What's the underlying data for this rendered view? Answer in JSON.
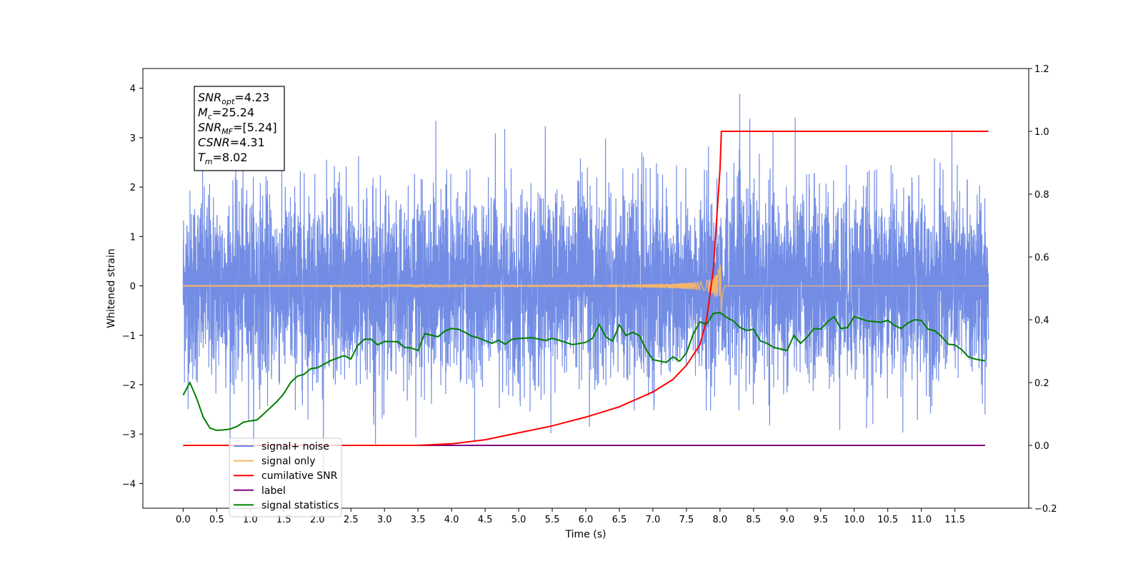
{
  "chart_data": {
    "type": "line",
    "xlabel": "Time (s)",
    "ylabel": "Whitened strain",
    "xlim": [
      -0.6,
      12.6
    ],
    "ylim": [
      -4.5,
      4.4
    ],
    "ylim_right": [
      -0.2,
      1.2
    ],
    "x_ticks": [
      "0.0",
      "0.5",
      "1.0",
      "1.5",
      "2.0",
      "2.5",
      "3.0",
      "3.5",
      "4.0",
      "4.5",
      "5.0",
      "5.5",
      "6.0",
      "6.5",
      "7.0",
      "7.5",
      "8.0",
      "8.5",
      "9.0",
      "9.5",
      "10.0",
      "10.5",
      "11.0",
      "11.5"
    ],
    "y_ticks": [
      "4",
      "3",
      "2",
      "1",
      "0",
      "−1",
      "−2",
      "−3",
      "−4"
    ],
    "y_ticks_right": [
      "1.2",
      "1.0",
      "0.8",
      "0.6",
      "0.4",
      "0.2",
      "0.0",
      "−0.2"
    ],
    "grid": false,
    "legend_placement": "lower-left",
    "annotation": [
      {
        "name": "SNR",
        "sub": "opt",
        "value": "=4.23"
      },
      {
        "name": "M",
        "sub": "c",
        "value": "=25.24"
      },
      {
        "name": "SNR",
        "sub": "MF",
        "value": "=[5.24]"
      },
      {
        "name": "CSNR",
        "sub": "",
        "value": "=4.31"
      },
      {
        "name": "T",
        "sub": "m",
        "value": "=8.02"
      }
    ],
    "series": [
      {
        "name": "signal+ noise",
        "color": "#6b87e4",
        "axis": "left",
        "description_points": {
          "noise_std": 1.0,
          "x_start": 0.0,
          "x_end": 12.0
        }
      },
      {
        "name": "signal only",
        "color": "#f5b56a",
        "axis": "left",
        "chirp": {
          "t_merge": 8.02,
          "peak_amplitude": 0.9
        }
      },
      {
        "name": "cumilative SNR",
        "color": "#ff0000",
        "axis": "right",
        "x": [
          0.0,
          3.5,
          4.0,
          4.5,
          5.0,
          5.5,
          6.0,
          6.5,
          7.0,
          7.3,
          7.5,
          7.7,
          7.8,
          7.9,
          7.95,
          8.0,
          8.02,
          12.0
        ],
        "values": [
          0.0,
          0.0,
          0.005,
          0.018,
          0.04,
          0.062,
          0.09,
          0.123,
          0.17,
          0.21,
          0.255,
          0.32,
          0.4,
          0.56,
          0.72,
          0.88,
          1.0,
          1.0
        ]
      },
      {
        "name": "label",
        "color": "#800080",
        "axis": "right",
        "x": [
          0.0,
          11.95
        ],
        "values": [
          0.0,
          0.0
        ]
      },
      {
        "name": "signal statistics",
        "color": "#007f00",
        "axis": "right",
        "x": [
          0.0,
          0.1,
          0.2,
          0.3,
          0.4,
          0.5,
          0.6,
          0.7,
          0.8,
          0.9,
          1.0,
          1.1,
          1.2,
          1.3,
          1.4,
          1.5,
          1.6,
          1.7,
          1.8,
          1.9,
          2.0,
          2.2,
          2.4,
          2.5,
          2.6,
          2.7,
          2.8,
          2.9,
          3.0,
          3.2,
          3.3,
          3.4,
          3.5,
          3.6,
          3.8,
          3.9,
          4.0,
          4.1,
          4.2,
          4.3,
          4.4,
          4.6,
          4.7,
          4.8,
          4.9,
          5.0,
          5.2,
          5.4,
          5.5,
          5.6,
          5.8,
          6.0,
          6.1,
          6.2,
          6.3,
          6.4,
          6.5,
          6.6,
          6.7,
          6.8,
          6.9,
          7.0,
          7.2,
          7.3,
          7.4,
          7.5,
          7.6,
          7.7,
          7.8,
          7.9,
          8.0,
          8.1,
          8.2,
          8.3,
          8.4,
          8.5,
          8.6,
          8.7,
          8.8,
          8.9,
          9.0,
          9.1,
          9.2,
          9.3,
          9.4,
          9.5,
          9.6,
          9.7,
          9.8,
          9.9,
          10.0,
          10.2,
          10.4,
          10.5,
          10.6,
          10.7,
          10.8,
          10.9,
          11.0,
          11.1,
          11.2,
          11.3,
          11.4,
          11.5,
          11.6,
          11.7,
          11.8,
          11.9,
          11.95
        ],
        "values": [
          0.16,
          0.2,
          0.15,
          0.09,
          0.055,
          0.048,
          0.049,
          0.052,
          0.06,
          0.074,
          0.078,
          0.081,
          0.1,
          0.12,
          0.14,
          0.165,
          0.2,
          0.22,
          0.226,
          0.244,
          0.247,
          0.27,
          0.286,
          0.275,
          0.318,
          0.338,
          0.338,
          0.32,
          0.331,
          0.33,
          0.312,
          0.31,
          0.302,
          0.356,
          0.346,
          0.364,
          0.372,
          0.37,
          0.36,
          0.348,
          0.342,
          0.325,
          0.335,
          0.322,
          0.338,
          0.34,
          0.343,
          0.334,
          0.341,
          0.335,
          0.321,
          0.328,
          0.341,
          0.385,
          0.345,
          0.332,
          0.384,
          0.35,
          0.36,
          0.349,
          0.305,
          0.273,
          0.264,
          0.282,
          0.268,
          0.294,
          0.354,
          0.393,
          0.386,
          0.42,
          0.423,
          0.407,
          0.396,
          0.375,
          0.366,
          0.37,
          0.333,
          0.325,
          0.312,
          0.307,
          0.302,
          0.35,
          0.325,
          0.345,
          0.372,
          0.37,
          0.393,
          0.41,
          0.372,
          0.375,
          0.41,
          0.396,
          0.392,
          0.398,
          0.382,
          0.372,
          0.39,
          0.4,
          0.398,
          0.37,
          0.365,
          0.347,
          0.322,
          0.32,
          0.305,
          0.282,
          0.275,
          0.271,
          0.27
        ]
      }
    ]
  }
}
